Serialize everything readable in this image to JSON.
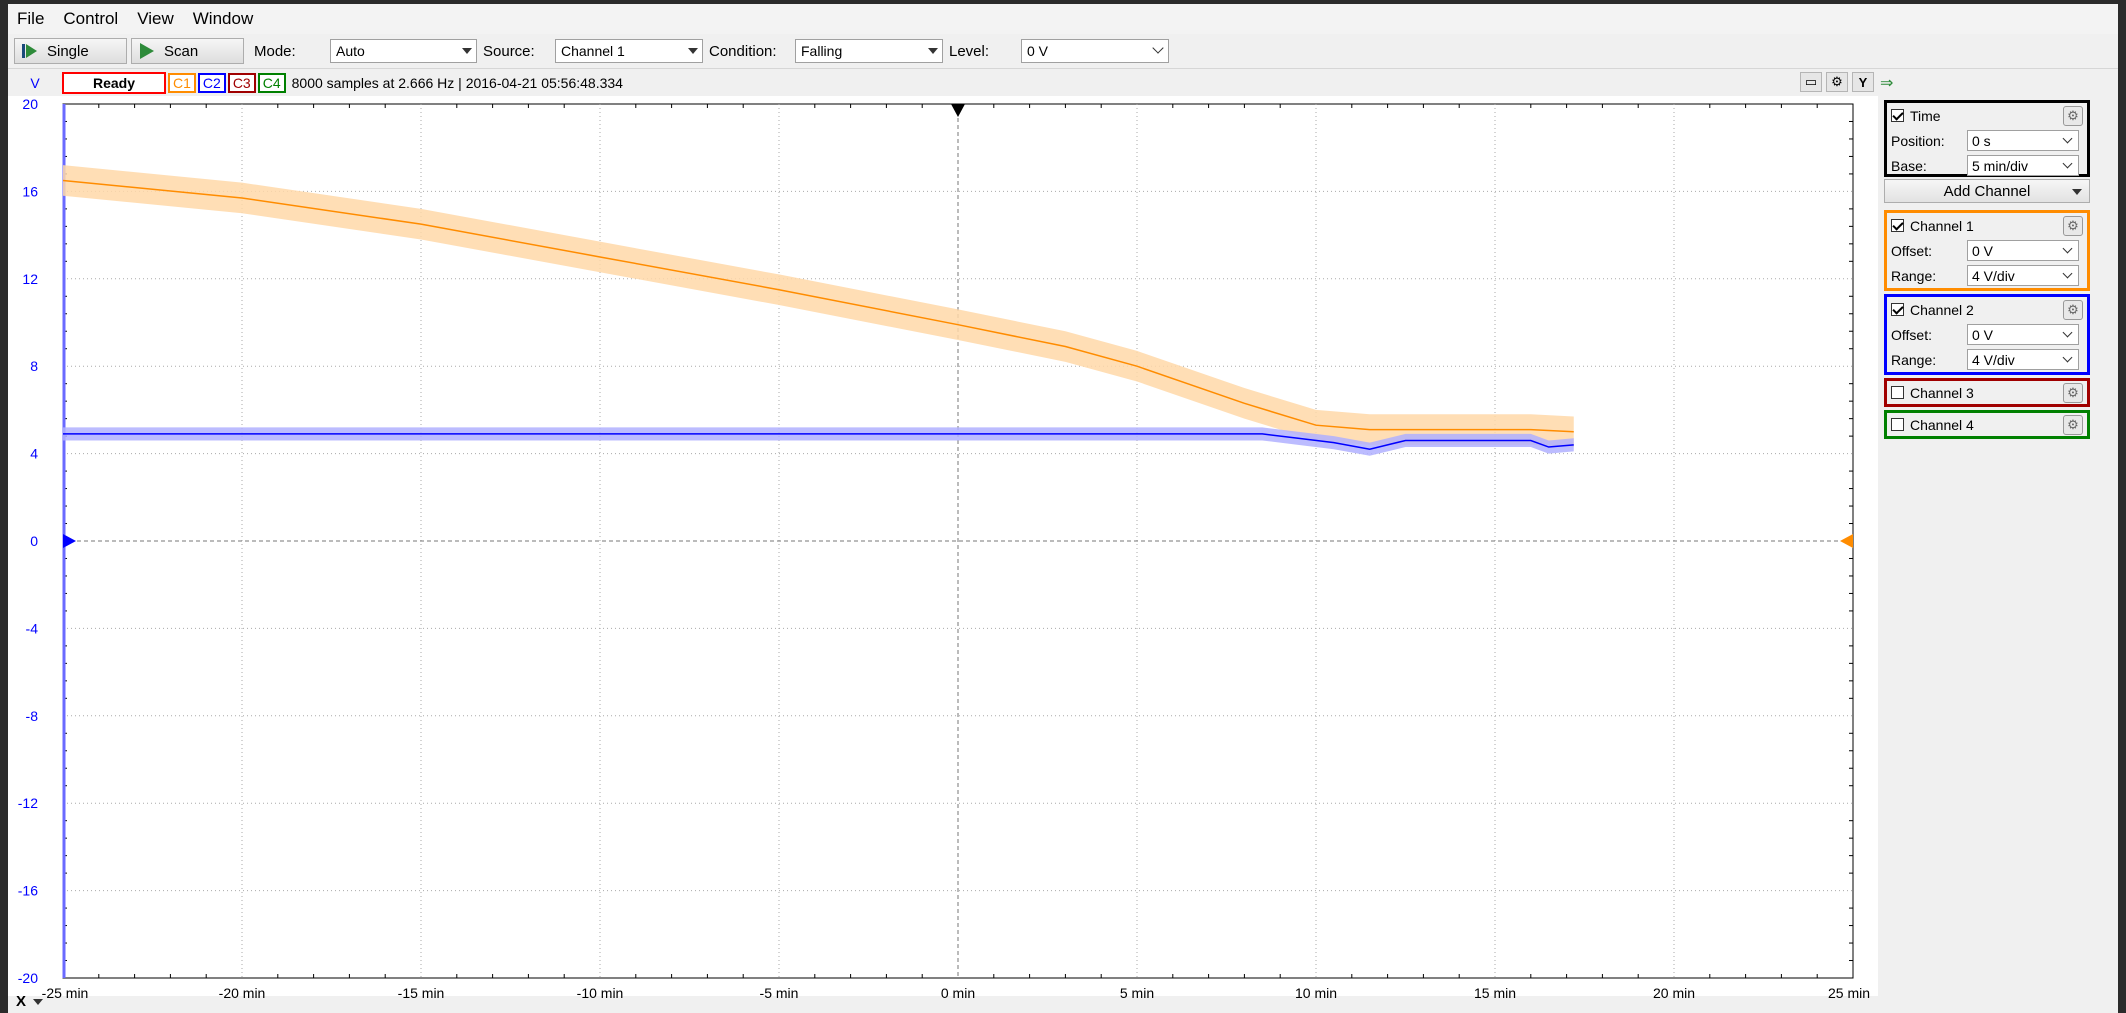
{
  "menu": {
    "file": "File",
    "control": "Control",
    "view": "View",
    "window": "Window"
  },
  "toolbar": {
    "single_label": "Single",
    "scan_label": "Scan",
    "mode_label": "Mode:",
    "mode_value": "Auto",
    "source_label": "Source:",
    "source_value": "Channel 1",
    "condition_label": "Condition:",
    "condition_value": "Falling",
    "level_label": "Level:",
    "level_value": "0 V"
  },
  "status": {
    "unit": "V",
    "state": "Ready",
    "channels": [
      "C1",
      "C2",
      "C3",
      "C4"
    ],
    "info": "8000 samples at 2.666 Hz | 2016-04-21 05:56:48.334"
  },
  "panel": {
    "time": {
      "label": "Time",
      "position_label": "Position:",
      "position_value": "0 s",
      "base_label": "Base:",
      "base_value": "5 min/div"
    },
    "add_channel": "Add Channel",
    "ch1": {
      "label": "Channel 1",
      "offset_label": "Offset:",
      "offset_value": "0 V",
      "range_label": "Range:",
      "range_value": "4 V/div"
    },
    "ch2": {
      "label": "Channel 2",
      "offset_label": "Offset:",
      "offset_value": "0 V",
      "range_label": "Range:",
      "range_value": "4 V/div"
    },
    "ch3": {
      "label": "Channel 3"
    },
    "ch4": {
      "label": "Channel 4"
    },
    "y_button": "Y",
    "x_button": "X"
  },
  "colors": {
    "ch1": "#ff8c00",
    "ch1_band": "#ffd8a8",
    "ch2": "#0000ff",
    "ch2_band": "#b0b0ff",
    "ch3": "#a00000",
    "ch4": "#008000",
    "ready_border": "#ff0000",
    "time_border": "#000000"
  },
  "chart_data": {
    "type": "line",
    "xlabel": "",
    "ylabel": "V",
    "xlim": [
      -25,
      25
    ],
    "ylim": [
      -20,
      20
    ],
    "x_ticks": [
      "-25 min",
      "-20 min",
      "-15 min",
      "-10 min",
      "-5 min",
      "0 min",
      "5 min",
      "10 min",
      "15 min",
      "20 min",
      "25 min"
    ],
    "y_ticks": [
      "20",
      "16",
      "12",
      "8",
      "4",
      "0",
      "-4",
      "-8",
      "-12",
      "-16",
      "-20"
    ],
    "grid": true,
    "series": [
      {
        "name": "C1",
        "x": [
          -25,
          -20,
          -15,
          -10,
          -5,
          0,
          3,
          5,
          8,
          10,
          11.5,
          14,
          16,
          17.2
        ],
        "y": [
          16.5,
          15.7,
          14.5,
          13.0,
          11.5,
          9.9,
          8.9,
          8.0,
          6.3,
          5.3,
          5.1,
          5.1,
          5.1,
          5.0
        ],
        "band": 0.7
      },
      {
        "name": "C2",
        "x": [
          -25,
          -15,
          -5,
          0,
          5,
          8.5,
          9.5,
          10.5,
          11.5,
          12.5,
          15,
          16,
          16.5,
          17.2
        ],
        "y": [
          4.9,
          4.9,
          4.9,
          4.9,
          4.9,
          4.9,
          4.7,
          4.5,
          4.2,
          4.6,
          4.6,
          4.6,
          4.3,
          4.4
        ],
        "band": 0.3
      }
    ]
  }
}
